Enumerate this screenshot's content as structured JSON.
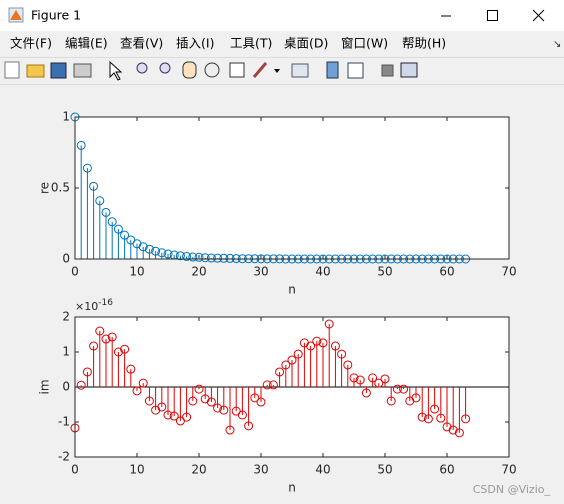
{
  "window": {
    "title": "Figure 1",
    "menu": [
      "文件(F)",
      "编辑(E)",
      "查看(V)",
      "插入(I)",
      "工具(T)",
      "桌面(D)",
      "窗口(W)",
      "帮助(H)"
    ]
  },
  "watermark": "CSDN @Vizio_",
  "chart_data": [
    {
      "type": "stem",
      "ylabel": "re",
      "xlabel": "n",
      "color": "#0072bd",
      "x": [
        0,
        1,
        2,
        3,
        4,
        5,
        6,
        7,
        8,
        9,
        10,
        11,
        12,
        13,
        14,
        15,
        16,
        17,
        18,
        19,
        20,
        21,
        22,
        23,
        24,
        25,
        26,
        27,
        28,
        29,
        30,
        31,
        32,
        33,
        34,
        35,
        36,
        37,
        38,
        39,
        40,
        41,
        42,
        43,
        44,
        45,
        46,
        47,
        48,
        49,
        50,
        51,
        52,
        53,
        54,
        55,
        56,
        57,
        58,
        59,
        60,
        61,
        62,
        63
      ],
      "values": [
        1,
        0.8,
        0.64,
        0.512,
        0.41,
        0.328,
        0.262,
        0.21,
        0.168,
        0.134,
        0.107,
        0.086,
        0.069,
        0.055,
        0.044,
        0.035,
        0.028,
        0.023,
        0.018,
        0.014,
        0.012,
        0.009,
        0.007,
        0.006,
        0.005,
        0.004,
        0.003,
        0.002,
        0.002,
        0.002,
        0.001,
        0.001,
        0.001,
        0.001,
        0,
        0,
        0,
        0,
        0,
        0,
        0,
        0,
        0,
        0,
        0,
        0,
        0,
        0,
        0,
        0,
        0,
        0,
        0,
        0,
        0,
        0,
        0,
        0,
        0,
        0,
        0,
        0,
        0,
        0
      ],
      "xlim": [
        0,
        70
      ],
      "xticks": [
        0,
        10,
        20,
        30,
        40,
        50,
        60,
        70
      ],
      "ylim": [
        0,
        1
      ],
      "yticks": [
        0,
        0.5,
        1
      ]
    },
    {
      "type": "stem",
      "ylabel": "im",
      "xlabel": "n",
      "color": "#e00000",
      "y_multiplier": "×10",
      "y_multiplier_exponent": "-16",
      "x": [
        0,
        1,
        2,
        3,
        4,
        5,
        6,
        7,
        8,
        9,
        10,
        11,
        12,
        13,
        14,
        15,
        16,
        17,
        18,
        19,
        20,
        21,
        22,
        23,
        24,
        25,
        26,
        27,
        28,
        29,
        30,
        31,
        32,
        33,
        34,
        35,
        36,
        37,
        38,
        39,
        40,
        41,
        42,
        43,
        44,
        45,
        46,
        47,
        48,
        49,
        50,
        51,
        52,
        53,
        54,
        55,
        56,
        57,
        58,
        59,
        60,
        61,
        62,
        63
      ],
      "values": [
        -1.17,
        0.05,
        0.43,
        1.17,
        1.6,
        1.37,
        1.43,
        1.0,
        1.08,
        0.51,
        -0.11,
        0.11,
        -0.4,
        -0.66,
        -0.57,
        -0.8,
        -0.83,
        -0.97,
        -0.86,
        -0.4,
        -0.06,
        -0.34,
        -0.43,
        -0.6,
        -0.66,
        -1.23,
        -0.69,
        -0.8,
        -1.11,
        -0.31,
        -0.43,
        0.06,
        0.06,
        0.43,
        0.63,
        0.77,
        0.94,
        1.26,
        1.17,
        1.31,
        1.26,
        1.8,
        1.17,
        0.94,
        0.63,
        0.26,
        0.2,
        -0.17,
        0.26,
        0.11,
        0.23,
        -0.4,
        -0.06,
        -0.06,
        -0.4,
        -0.31,
        -0.86,
        -0.91,
        -0.63,
        -0.89,
        -1.14,
        -1.23,
        -1.31,
        -0.91
      ],
      "xlim": [
        0,
        70
      ],
      "xticks": [
        0,
        10,
        20,
        30,
        40,
        50,
        60,
        70
      ],
      "ylim": [
        -2,
        2
      ],
      "yticks": [
        -2,
        -1,
        0,
        1,
        2
      ]
    }
  ]
}
